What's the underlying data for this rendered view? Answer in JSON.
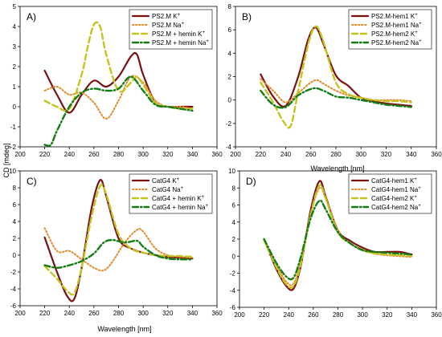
{
  "figure": {
    "ylabel": "CD [mdeg]",
    "xlabel_top": "Wavelength [nm]",
    "xlabel_bottom": "Wavelength [nm]"
  },
  "chart_data": [
    {
      "type": "line",
      "panel": "A)",
      "xlim": [
        200,
        360
      ],
      "ylim": [
        -2,
        5
      ],
      "xticks": [
        200,
        220,
        240,
        260,
        280,
        300,
        320,
        340,
        360
      ],
      "yticks": [
        -2,
        -1,
        0,
        1,
        2,
        3,
        4,
        5
      ],
      "legend": "top-right",
      "series": [
        {
          "name": "PS2.M K",
          "sup": "+",
          "style": "solid",
          "color": "#7b1010",
          "x": [
            220,
            230,
            240,
            250,
            260,
            270,
            280,
            290,
            295,
            300,
            310,
            320,
            330,
            340
          ],
          "y": [
            1.8,
            0.6,
            -0.3,
            0.6,
            1.3,
            1.0,
            1.5,
            2.5,
            2.6,
            1.6,
            0.2,
            0.0,
            0.0,
            0.0
          ]
        },
        {
          "name": "PS2.M Na",
          "sup": "+",
          "style": "dotted",
          "color": "#e58a2b",
          "x": [
            220,
            230,
            240,
            250,
            260,
            270,
            280,
            290,
            300,
            310,
            320,
            330,
            340
          ],
          "y": [
            0.8,
            1.0,
            0.6,
            0.7,
            0.2,
            -0.6,
            0.3,
            1.5,
            1.2,
            0.3,
            0.0,
            0.0,
            -0.1
          ]
        },
        {
          "name": "PS2.M + hemin K",
          "sup": "+",
          "style": "dashed",
          "color": "#c4c421",
          "x": [
            220,
            230,
            240,
            250,
            255,
            260,
            265,
            270,
            280,
            290,
            295,
            300,
            310,
            320,
            330,
            340
          ],
          "y": [
            0.3,
            0.0,
            -0.1,
            1.6,
            3.0,
            4.1,
            4.0,
            2.6,
            0.8,
            1.2,
            1.5,
            1.1,
            0.2,
            0.0,
            -0.1,
            -0.1
          ]
        },
        {
          "name": "PS2.M + hemin Na",
          "sup": "+",
          "style": "dashdot",
          "color": "#137d13",
          "x": [
            220,
            225,
            230,
            240,
            250,
            260,
            270,
            280,
            290,
            300,
            310,
            320,
            330,
            340
          ],
          "y": [
            -1.9,
            -1.9,
            -1.2,
            0.0,
            0.7,
            0.9,
            0.8,
            0.9,
            1.5,
            0.8,
            0.1,
            0.0,
            -0.1,
            -0.2
          ]
        }
      ]
    },
    {
      "type": "line",
      "panel": "B)",
      "xlim": [
        200,
        360
      ],
      "ylim": [
        -4,
        8
      ],
      "xticks": [
        200,
        220,
        240,
        260,
        280,
        300,
        320,
        340,
        360
      ],
      "yticks": [
        -4,
        -2,
        0,
        2,
        4,
        6,
        8
      ],
      "legend": "top-right",
      "series": [
        {
          "name": "PS2.M-hem1 K",
          "sup": "+",
          "style": "solid",
          "color": "#7b1010",
          "x": [
            220,
            230,
            240,
            250,
            258,
            264,
            270,
            280,
            290,
            300,
            310,
            320,
            330,
            340
          ],
          "y": [
            2.2,
            0.3,
            -0.5,
            2.0,
            5.2,
            6.2,
            4.8,
            2.1,
            1.2,
            0.2,
            -0.1,
            -0.3,
            -0.4,
            -0.5
          ]
        },
        {
          "name": "PS2.M-hem1 Na",
          "sup": "+",
          "style": "dotted",
          "color": "#e58a2b",
          "x": [
            220,
            230,
            240,
            250,
            260,
            265,
            270,
            280,
            290,
            300,
            310,
            320,
            330,
            340
          ],
          "y": [
            1.8,
            0.8,
            -0.2,
            0.6,
            1.5,
            1.7,
            1.4,
            0.8,
            0.4,
            0.2,
            0.0,
            0.0,
            0.0,
            -0.1
          ]
        },
        {
          "name": "PS2.M-hem2 K",
          "sup": "+",
          "style": "dashed",
          "color": "#c4c421",
          "x": [
            220,
            230,
            238,
            244,
            250,
            258,
            264,
            270,
            280,
            290,
            300,
            310,
            320,
            330,
            340
          ],
          "y": [
            1.5,
            -0.2,
            -1.8,
            -2.2,
            0.8,
            4.8,
            6.3,
            5.0,
            1.5,
            0.5,
            0.2,
            0.0,
            -0.1,
            -0.1,
            -0.2
          ]
        },
        {
          "name": "PS2.M-hem2 Na",
          "sup": "+",
          "style": "dashdot",
          "color": "#137d13",
          "x": [
            220,
            230,
            240,
            250,
            262,
            270,
            280,
            290,
            300,
            310,
            320,
            330,
            340
          ],
          "y": [
            0.8,
            -0.4,
            -0.6,
            0.4,
            1.0,
            0.8,
            0.3,
            0.2,
            0.0,
            -0.2,
            -0.4,
            -0.5,
            -0.6
          ]
        }
      ]
    },
    {
      "type": "line",
      "panel": "C)",
      "xlim": [
        200,
        360
      ],
      "ylim": [
        -6,
        10
      ],
      "xticks": [
        200,
        220,
        240,
        260,
        280,
        300,
        320,
        340,
        360
      ],
      "yticks": [
        -6,
        -4,
        -2,
        0,
        2,
        4,
        6,
        8,
        10
      ],
      "legend": "top-right",
      "series": [
        {
          "name": "CatG4 K",
          "sup": "+",
          "style": "solid",
          "color": "#7b1010",
          "x": [
            220,
            230,
            238,
            244,
            250,
            258,
            265,
            270,
            280,
            290,
            300,
            310,
            320,
            330,
            340
          ],
          "y": [
            2.1,
            -2.0,
            -4.8,
            -5.2,
            -1.5,
            5.5,
            8.9,
            7.0,
            2.0,
            0.8,
            0.3,
            0.0,
            -0.2,
            -0.3,
            -0.4
          ]
        },
        {
          "name": "CatG4 Na",
          "sup": "+",
          "style": "dotted",
          "color": "#e58a2b",
          "x": [
            220,
            230,
            240,
            250,
            260,
            268,
            275,
            285,
            295,
            300,
            310,
            320,
            330,
            340
          ],
          "y": [
            3.2,
            0.5,
            0.5,
            -0.5,
            -1.5,
            -1.8,
            -0.8,
            1.5,
            3.0,
            2.8,
            0.8,
            0.0,
            -0.2,
            -0.3
          ]
        },
        {
          "name": "CatG4 + hemin K",
          "sup": "+",
          "style": "dashed",
          "color": "#c4c421",
          "x": [
            220,
            230,
            238,
            244,
            250,
            258,
            265,
            270,
            280,
            290,
            300,
            310,
            320,
            330,
            340
          ],
          "y": [
            -1.3,
            -2.8,
            -4.2,
            -4.5,
            -1.5,
            4.5,
            8.2,
            7.2,
            2.5,
            0.8,
            0.3,
            0.0,
            -0.1,
            -0.1,
            -0.2
          ]
        },
        {
          "name": "CatG4 + hemin Na",
          "sup": "+",
          "style": "dashdot",
          "color": "#137d13",
          "x": [
            220,
            230,
            240,
            250,
            260,
            268,
            275,
            285,
            295,
            300,
            310,
            320,
            330,
            340
          ],
          "y": [
            -1.2,
            -1.5,
            -1.2,
            -0.7,
            0.2,
            1.5,
            1.8,
            1.5,
            1.7,
            1.0,
            0.0,
            -0.4,
            -0.5,
            -0.5
          ]
        }
      ]
    },
    {
      "type": "line",
      "panel": "D)",
      "xlim": [
        200,
        360
      ],
      "ylim": [
        -6,
        10
      ],
      "xticks": [
        200,
        220,
        240,
        260,
        280,
        300,
        320,
        340,
        360
      ],
      "yticks": [
        -6,
        -4,
        -2,
        0,
        2,
        4,
        6,
        8,
        10
      ],
      "legend": "top-right",
      "series": [
        {
          "name": "CatG4-hem1 K",
          "sup": "+",
          "style": "solid",
          "color": "#7b1010",
          "x": [
            220,
            230,
            238,
            244,
            250,
            258,
            265,
            270,
            280,
            290,
            300,
            310,
            320,
            330,
            340
          ],
          "y": [
            2.0,
            -1.5,
            -3.5,
            -3.8,
            -1.0,
            5.5,
            8.8,
            7.0,
            3.0,
            1.8,
            1.0,
            0.5,
            0.5,
            0.5,
            0.2
          ]
        },
        {
          "name": "CatG4-hem1 Na",
          "sup": "+",
          "style": "dotted",
          "color": "#e58a2b",
          "x": [
            220,
            230,
            238,
            244,
            250,
            258,
            265,
            270,
            280,
            290,
            300,
            310,
            320,
            330,
            340
          ],
          "y": [
            1.8,
            -1.0,
            -3.0,
            -3.2,
            -0.5,
            5.0,
            8.0,
            6.8,
            3.0,
            1.5,
            0.8,
            0.3,
            0.1,
            0.0,
            -0.1
          ]
        },
        {
          "name": "CatG4-hem2 K",
          "sup": "+",
          "style": "dashed",
          "color": "#c4c421",
          "x": [
            220,
            230,
            238,
            244,
            250,
            258,
            265,
            270,
            280,
            290,
            300,
            310,
            320,
            330,
            340
          ],
          "y": [
            1.9,
            -1.3,
            -3.3,
            -3.5,
            -0.8,
            5.0,
            8.3,
            6.8,
            2.8,
            1.5,
            0.7,
            0.3,
            0.2,
            0.1,
            0.0
          ]
        },
        {
          "name": "CatG4-hem2 Na",
          "sup": "+",
          "style": "dashdot",
          "color": "#137d13",
          "x": [
            220,
            230,
            238,
            244,
            250,
            258,
            265,
            270,
            280,
            290,
            300,
            310,
            320,
            330,
            340
          ],
          "y": [
            2.0,
            -0.8,
            -2.4,
            -2.5,
            0.0,
            4.5,
            6.5,
            5.5,
            2.8,
            1.5,
            0.7,
            0.5,
            0.4,
            0.3,
            0.2
          ]
        }
      ]
    }
  ]
}
